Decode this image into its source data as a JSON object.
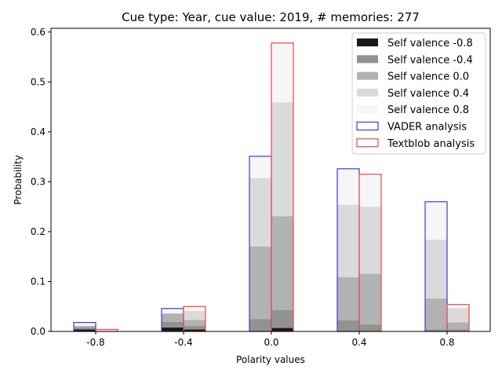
{
  "chart_data": {
    "type": "bar",
    "title": "Cue type: Year, cue value: 2019, # memories: 277",
    "xlabel": "Polarity values",
    "ylabel": "Probability",
    "categories": [
      "-0.8",
      "-0.4",
      "0.0",
      "0.4",
      "0.8"
    ],
    "ylim": [
      0,
      0.6
    ],
    "yticks": [
      "0.0",
      "0.1",
      "0.2",
      "0.3",
      "0.4",
      "0.5",
      "0.6"
    ],
    "legend_position": "top-right",
    "stack_series": [
      {
        "name": "Self valence -0.8",
        "color": "#000000",
        "vader": [
          0.004,
          0.008,
          0.0,
          0.0,
          0.0
        ],
        "textblob": [
          0.0,
          0.004,
          0.007,
          0.0,
          0.0
        ]
      },
      {
        "name": "Self valence -0.4",
        "color": "#7f7f7f",
        "vader": [
          0.004,
          0.011,
          0.025,
          0.022,
          0.004
        ],
        "textblob": [
          0.0,
          0.007,
          0.036,
          0.014,
          0.004
        ]
      },
      {
        "name": "Self valence 0.0",
        "color": "#a5a5a5",
        "vader": [
          0.003,
          0.017,
          0.145,
          0.087,
          0.062
        ],
        "textblob": [
          0.0,
          0.012,
          0.188,
          0.102,
          0.014
        ]
      },
      {
        "name": "Self valence 0.4",
        "color": "#d3d3d3",
        "vader": [
          0.0,
          0.0,
          0.137,
          0.145,
          0.118
        ],
        "textblob": [
          0.0,
          0.018,
          0.228,
          0.134,
          0.029
        ]
      },
      {
        "name": "Self valence 0.8",
        "color": "#f5f5f5",
        "vader": [
          0.007,
          0.01,
          0.044,
          0.072,
          0.076
        ],
        "textblob": [
          0.004,
          0.009,
          0.119,
          0.065,
          0.007
        ]
      }
    ],
    "outline_series": [
      {
        "name": "VADER analysis",
        "color": "#3b3bdb",
        "values": [
          0.018,
          0.046,
          0.351,
          0.326,
          0.26
        ]
      },
      {
        "name": "Textblob analysis",
        "color": "#e84848",
        "values": [
          0.004,
          0.05,
          0.578,
          0.315,
          0.054
        ]
      }
    ]
  }
}
